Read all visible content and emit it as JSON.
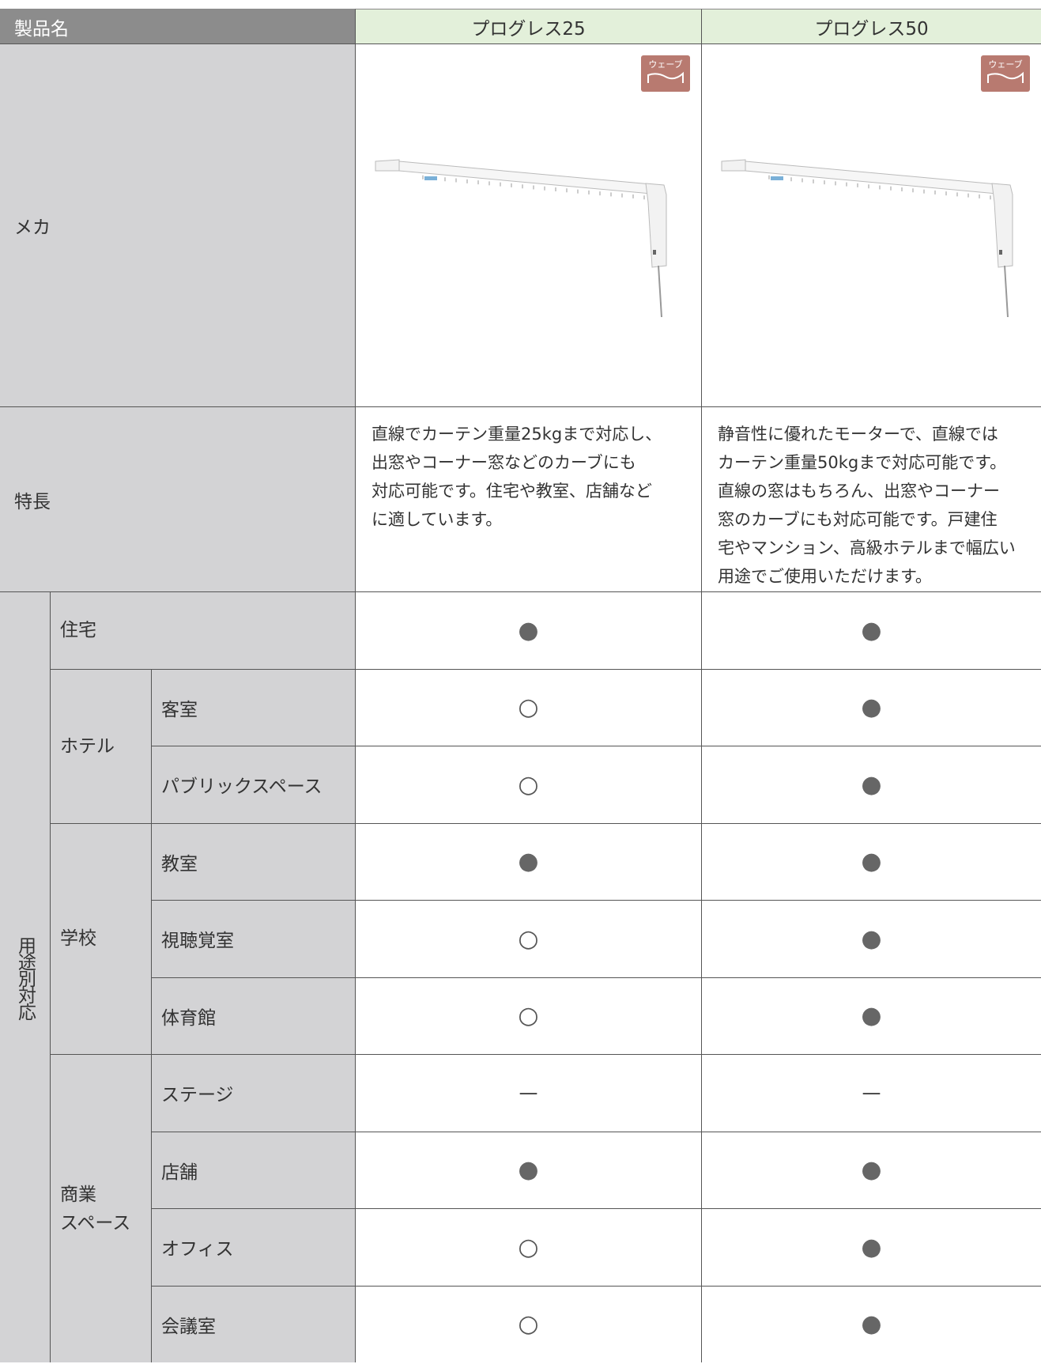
{
  "header": {
    "label": "製品名",
    "products": [
      "プログレス25",
      "プログレス50"
    ]
  },
  "mecha": {
    "label": "メカ",
    "badges": [
      "ウェーブ",
      "ウェーブ"
    ]
  },
  "features": {
    "label": "特長",
    "texts": [
      [
        "直線でカーテン重量25kgまで対応し、",
        "出窓やコーナー窓などのカーブにも",
        "対応可能です。住宅や教室、店舗など",
        "に適しています。"
      ],
      [
        "静音性に優れたモーターで、直線では",
        "カーテン重量50kgまで対応可能です。",
        "直線の窓はもちろん、出窓やコーナー",
        "窓のカーブにも対応可能です。戸建住",
        "宅やマンション、高級ホテルまで幅広い",
        "用途でご使用いただけます。"
      ]
    ]
  },
  "usage": {
    "label": "用途別対応",
    "groups": [
      {
        "label": [
          "住宅"
        ],
        "rows": [
          {
            "marks": [
              "●",
              "●"
            ]
          }
        ]
      },
      {
        "label": [
          "ホテル"
        ],
        "rows": [
          {
            "label": "客室",
            "marks": [
              "○",
              "●"
            ]
          },
          {
            "label": "パブリックスペース",
            "marks": [
              "○",
              "●"
            ]
          }
        ]
      },
      {
        "label": [
          "学校"
        ],
        "rows": [
          {
            "label": "教室",
            "marks": [
              "●",
              "●"
            ]
          },
          {
            "label": "視聴覚室",
            "marks": [
              "○",
              "●"
            ]
          },
          {
            "label": "体育館",
            "marks": [
              "○",
              "●"
            ]
          }
        ]
      },
      {
        "label": [
          "商業",
          "スペース"
        ],
        "rows": [
          {
            "label": "ステージ",
            "marks": [
              "—",
              "—"
            ]
          },
          {
            "label": "店舗",
            "marks": [
              "●",
              "●"
            ]
          },
          {
            "label": "オフィス",
            "marks": [
              "○",
              "●"
            ]
          },
          {
            "label": "会議室",
            "marks": [
              "○",
              "●"
            ]
          }
        ]
      }
    ]
  }
}
